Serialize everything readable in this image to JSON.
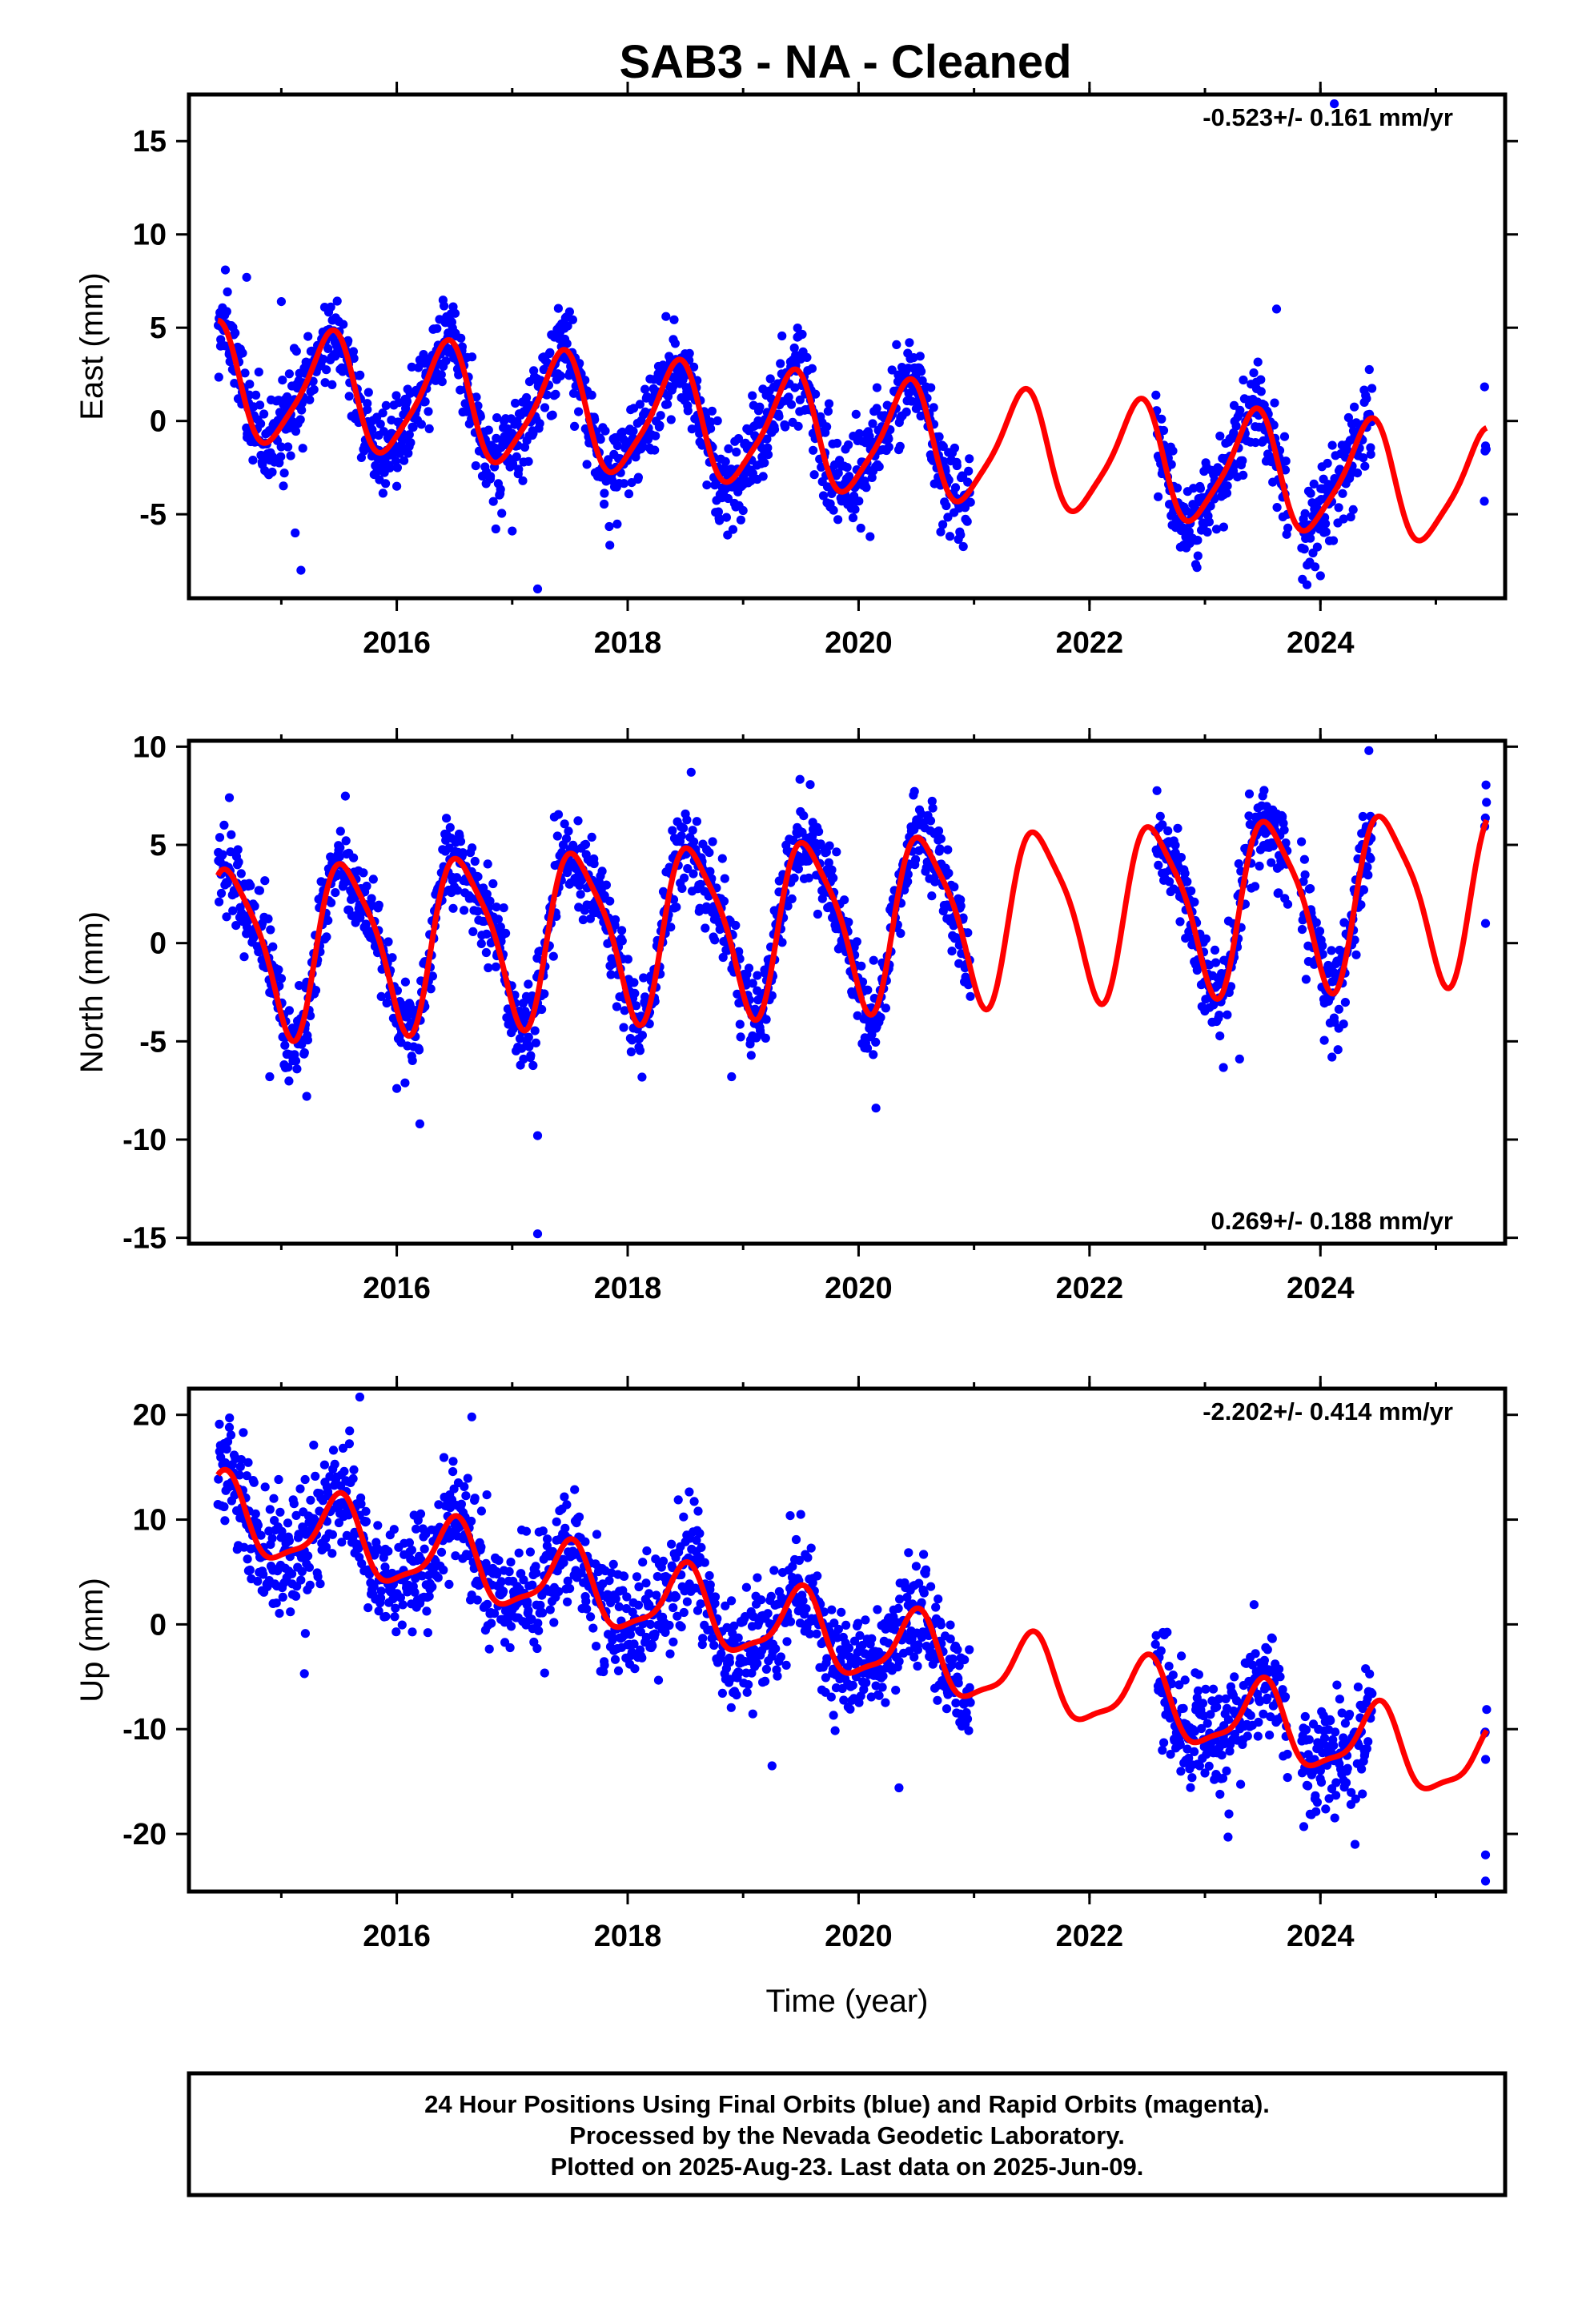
{
  "title": "SAB3  - NA - Cleaned",
  "footer": {
    "line1": "24 Hour Positions Using Final Orbits (blue) and Rapid Orbits (magenta).",
    "line2": "Processed by the Nevada Geodetic Laboratory.",
    "line3": "Plotted on 2025-Aug-23. Last data on 2025-Jun-09."
  },
  "colors": {
    "points": "#0000ff",
    "model": "#ff0000",
    "frame": "#000000"
  },
  "chart_data": [
    {
      "type": "scatter",
      "name": "east",
      "ylabel": "East (mm)",
      "xlabel": "",
      "rate_text": "-0.523+/- 0.161 mm/yr",
      "rate_position": "top-right",
      "xlim": [
        2014.2,
        2025.6
      ],
      "ylim": [
        -9.5,
        17.5
      ],
      "xticks": [
        2016,
        2018,
        2020,
        2022,
        2024
      ],
      "xtick_labels": [
        "2016",
        "2018",
        "2020",
        "2022",
        "2024"
      ],
      "yticks": [
        -5,
        0,
        5,
        10,
        15
      ],
      "ytick_labels": [
        "-5",
        "0",
        "5",
        "10",
        "15"
      ],
      "data_segments": [
        [
          2014.45,
          2020.97
        ],
        [
          2022.57,
          2023.72
        ],
        [
          2023.83,
          2024.45
        ],
        [
          2025.42,
          2025.44
        ]
      ],
      "model": {
        "t0": 2014.45,
        "trend": -0.523,
        "offset": 2.0,
        "annual_amp": 3.0,
        "annual_phase": 1.8,
        "semiannual_amp": 0.6,
        "semiannual_phase": 0.9,
        "scatter_sd": 1.2
      },
      "outliers": [
        [
          2014.7,
          7.7
        ],
        [
          2015.0,
          6.4
        ],
        [
          2015.12,
          -6.0
        ],
        [
          2015.17,
          -8.0
        ],
        [
          2016.0,
          -3.5
        ],
        [
          2017.0,
          -5.9
        ],
        [
          2017.22,
          -9.0
        ],
        [
          2019.0,
          -4.8
        ],
        [
          2020.1,
          -6.2
        ],
        [
          2023.1,
          -5.8
        ],
        [
          2023.62,
          6.0
        ],
        [
          2024.0,
          -8.3
        ],
        [
          2024.12,
          17.0
        ],
        [
          2024.4,
          1.2
        ],
        [
          2025.42,
          -4.3
        ]
      ]
    },
    {
      "type": "scatter",
      "name": "north",
      "ylabel": "North (mm)",
      "xlabel": "",
      "rate_text": "0.269+/- 0.188 mm/yr",
      "rate_position": "bottom-right",
      "xlim": [
        2014.2,
        2025.6
      ],
      "ylim": [
        -15.3,
        10.3
      ],
      "xticks": [
        2016,
        2018,
        2020,
        2022,
        2024
      ],
      "xtick_labels": [
        "2016",
        "2018",
        "2020",
        "2022",
        "2024"
      ],
      "yticks": [
        -15,
        -10,
        -5,
        0,
        5,
        10
      ],
      "ytick_labels": [
        "-15",
        "-10",
        "-5",
        "0",
        "5",
        "10"
      ],
      "data_segments": [
        [
          2014.45,
          2020.97
        ],
        [
          2022.57,
          2023.72
        ],
        [
          2023.83,
          2024.45
        ],
        [
          2025.42,
          2025.44
        ]
      ],
      "model": {
        "t0": 2014.45,
        "trend": 0.269,
        "offset": -0.3,
        "annual_amp": 4.2,
        "annual_phase": 0.8,
        "semiannual_amp": 0.9,
        "semiannual_phase": 2.2,
        "scatter_sd": 1.1
      },
      "outliers": [
        [
          2014.55,
          7.4
        ],
        [
          2014.9,
          -6.8
        ],
        [
          2015.22,
          -7.8
        ],
        [
          2016.2,
          -9.2
        ],
        [
          2016.0,
          -7.4
        ],
        [
          2017.22,
          -9.8
        ],
        [
          2017.22,
          -14.8
        ],
        [
          2018.55,
          8.7
        ],
        [
          2018.9,
          -6.8
        ],
        [
          2020.15,
          -8.4
        ],
        [
          2023.3,
          -5.9
        ],
        [
          2024.1,
          -5.8
        ],
        [
          2024.42,
          9.8
        ],
        [
          2025.43,
          1.0
        ]
      ]
    },
    {
      "type": "scatter",
      "name": "up",
      "ylabel": "Up (mm)",
      "xlabel": "Time (year)",
      "rate_text": "-2.202+/- 0.414 mm/yr",
      "rate_position": "top-right",
      "xlim": [
        2014.2,
        2025.6
      ],
      "ylim": [
        -25.5,
        22.5
      ],
      "xticks": [
        2016,
        2018,
        2020,
        2022,
        2024
      ],
      "xtick_labels": [
        "2016",
        "2018",
        "2020",
        "2022",
        "2024"
      ],
      "yticks": [
        -20,
        -10,
        0,
        10,
        20
      ],
      "ytick_labels": [
        "-20",
        "-10",
        "0",
        "10",
        "20"
      ],
      "data_segments": [
        [
          2014.45,
          2020.97
        ],
        [
          2022.57,
          2023.72
        ],
        [
          2023.83,
          2024.45
        ],
        [
          2025.42,
          2025.44
        ]
      ],
      "model": {
        "t0": 2014.45,
        "trend": -2.202,
        "offset": 10.5,
        "annual_amp": 3.5,
        "annual_phase": 1.3,
        "semiannual_amp": 1.0,
        "semiannual_phase": 0.4,
        "scatter_sd": 2.7
      },
      "outliers": [
        [
          2015.68,
          21.7
        ],
        [
          2016.65,
          19.8
        ],
        [
          2015.2,
          -4.7
        ],
        [
          2019.25,
          -13.5
        ],
        [
          2020.35,
          -15.6
        ],
        [
          2023.2,
          -20.3
        ],
        [
          2024.3,
          -21.0
        ],
        [
          2025.43,
          -24.5
        ],
        [
          2025.43,
          -22.0
        ],
        [
          2014.55,
          18.8
        ]
      ]
    }
  ]
}
